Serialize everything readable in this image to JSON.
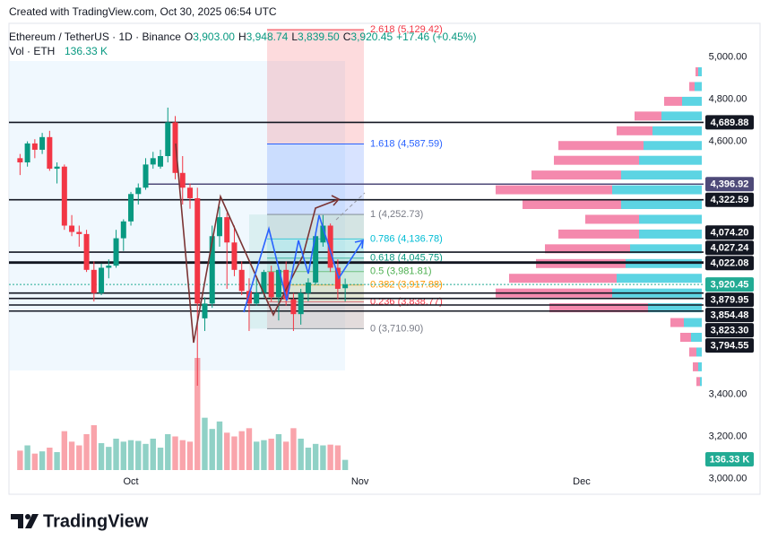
{
  "header": {
    "created": "Created with TradingView.com, Oct 30, 2025 06:54 UTC"
  },
  "chart_data": {
    "type": "candlestick",
    "symbol": "Ethereum / TetherUS · 1D · Binance",
    "ohlc_legend": [
      {
        "key": "O",
        "value": 3903.0,
        "label": "3,903.00"
      },
      {
        "key": "H",
        "value": 3948.74,
        "label": "3,948.74"
      },
      {
        "key": "L",
        "value": 3839.5,
        "label": "3,839.50"
      },
      {
        "key": "C",
        "value": 3920.45,
        "label": "3,920.45"
      }
    ],
    "change": {
      "value": 17.46,
      "percent": 0.45,
      "label": "+17.46 (+0.45%)"
    },
    "volume_title": "Vol · ETH",
    "volume_label": "136.33 K",
    "up_color": "#089981",
    "down_color": "#f23645",
    "ylim": [
      2925,
      5160
    ],
    "yticks": [
      {
        "value": 5000,
        "label": "5,000.00"
      },
      {
        "value": 4800,
        "label": "4,800.00"
      },
      {
        "value": 4600,
        "label": "4,600.00"
      },
      {
        "value": 3400,
        "label": "3,400.00"
      },
      {
        "value": 3200,
        "label": "3,200.00"
      },
      {
        "value": 3000,
        "label": "3,000.00"
      }
    ],
    "xlim": [
      -1.5,
      92.5
    ],
    "xticks": [
      {
        "value": 15,
        "label": "Oct"
      },
      {
        "value": 46,
        "label": "Nov"
      },
      {
        "value": 76,
        "label": "Dec"
      }
    ],
    "open": [
      4520,
      4500,
      4590,
      4560,
      4620,
      4470,
      4480,
      4200,
      4170,
      4160,
      3990,
      3880,
      4000,
      4010,
      4140,
      4220,
      4350,
      4380,
      4490,
      4480,
      4530,
      4690,
      4450,
      4380,
      4330,
      3760,
      3830,
      4150,
      4240,
      4120,
      3990,
      3890,
      3830,
      3880,
      3980,
      3860,
      3990,
      3850,
      3780,
      3880,
      3930,
      4120,
      4200,
      4000,
      3903.0
    ],
    "high": [
      4540,
      4600,
      4610,
      4640,
      4650,
      4500,
      4490,
      4250,
      4200,
      4180,
      4030,
      4020,
      4040,
      4180,
      4230,
      4360,
      4400,
      4520,
      4550,
      4560,
      4760,
      4720,
      4530,
      4400,
      4380,
      3860,
      4200,
      4290,
      4260,
      4200,
      4030,
      3950,
      3950,
      3990,
      4010,
      4000,
      4030,
      3880,
      3900,
      3950,
      4170,
      4250,
      4210,
      4040,
      3948.74
    ],
    "low": [
      4440,
      4480,
      4520,
      4540,
      4460,
      4400,
      4180,
      4150,
      4100,
      3980,
      3840,
      3870,
      3950,
      4000,
      4080,
      4200,
      4300,
      4370,
      4470,
      4470,
      4500,
      4420,
      4300,
      4280,
      3440,
      3700,
      3810,
      4100,
      3900,
      3960,
      3870,
      3700,
      3820,
      3860,
      3840,
      3750,
      3820,
      3700,
      3730,
      3840,
      3920,
      4100,
      3980,
      3850,
      3839.5
    ],
    "close": [
      4500,
      4590,
      4560,
      4620,
      4470,
      4480,
      4200,
      4170,
      4160,
      3990,
      3880,
      4000,
      4010,
      4140,
      4220,
      4350,
      4380,
      4490,
      4520,
      4530,
      4690,
      4450,
      4380,
      4330,
      3830,
      3830,
      4150,
      4240,
      4120,
      3990,
      3890,
      3830,
      3880,
      3980,
      3860,
      3990,
      3850,
      3780,
      3880,
      3930,
      4150,
      4200,
      4000,
      3900,
      3920.45
    ],
    "volume": [
      260,
      330,
      220,
      250,
      300,
      240,
      520,
      380,
      330,
      480,
      600,
      360,
      310,
      420,
      380,
      400,
      390,
      350,
      420,
      300,
      480,
      450,
      400,
      380,
      1500,
      700,
      550,
      650,
      500,
      450,
      520,
      560,
      380,
      400,
      420,
      480,
      380,
      560,
      420,
      300,
      350,
      330,
      340,
      330,
      136.33
    ],
    "price_lines": [
      {
        "value": 4689.88,
        "label": "4,689.88",
        "color": "#131722"
      },
      {
        "value": 4396.92,
        "label": "4,396.92",
        "color": "#4e4a78"
      },
      {
        "value": 4322.59,
        "label": "4,322.59",
        "color": "#131722"
      },
      {
        "value": 4074.2,
        "label": "4,074.20",
        "color": "#131722"
      },
      {
        "value": 4027.24,
        "label": "4,027.24",
        "color": "#131722"
      },
      {
        "value": 4022.08,
        "label": "4,022.08",
        "color": "#131722"
      },
      {
        "value": 3920.45,
        "label": "3,920.45",
        "color": "#22ab94",
        "current": true
      },
      {
        "value": 3879.95,
        "label": "3,879.95",
        "color": "#131722"
      },
      {
        "value": 3854.48,
        "label": "3,854.48",
        "color": "#131722"
      },
      {
        "value": 3823.3,
        "label": "3,823.30",
        "color": "#131722"
      },
      {
        "value": 3794.55,
        "label": "3,794.55",
        "color": "#131722"
      }
    ],
    "fib_levels": [
      {
        "value": 5129.42,
        "label": "2.618 (5,129.42)",
        "color": "#f23645"
      },
      {
        "value": 4587.59,
        "label": "1.618 (4,587.59)",
        "color": "#2962ff"
      },
      {
        "value": 4252.73,
        "label": "1 (4,252.73)",
        "color": "#787b86"
      },
      {
        "value": 4136.78,
        "label": "0.786 (4,136.78)",
        "color": "#00bcd4"
      },
      {
        "value": 4045.75,
        "label": "0.618 (4,045.75)",
        "color": "#089981"
      },
      {
        "value": 3981.81,
        "label": "0.5 (3,981.81)",
        "color": "#4caf50"
      },
      {
        "value": 3917.88,
        "label": "0.382 (3,917.88)",
        "color": "#ff9800"
      },
      {
        "value": 3838.77,
        "label": "0.236 (3,838.77)",
        "color": "#f23645"
      },
      {
        "value": 3710.9,
        "label": "0 (3,710.90)",
        "color": "#787b86"
      }
    ],
    "volume_profile": [
      {
        "price": 4930,
        "up": 4,
        "down": 3
      },
      {
        "price": 4860,
        "up": 8,
        "down": 6
      },
      {
        "price": 4790,
        "up": 22,
        "down": 20
      },
      {
        "price": 4720,
        "up": 45,
        "down": 30
      },
      {
        "price": 4650,
        "up": 55,
        "down": 40
      },
      {
        "price": 4580,
        "up": 65,
        "down": 95
      },
      {
        "price": 4510,
        "up": 70,
        "down": 95
      },
      {
        "price": 4440,
        "up": 90,
        "down": 100
      },
      {
        "price": 4370,
        "up": 100,
        "down": 130
      },
      {
        "price": 4300,
        "up": 90,
        "down": 110
      },
      {
        "price": 4230,
        "up": 70,
        "down": 60
      },
      {
        "price": 4160,
        "up": 70,
        "down": 90
      },
      {
        "price": 4090,
        "up": 80,
        "down": 95
      },
      {
        "price": 4020,
        "up": 85,
        "down": 100
      },
      {
        "price": 3950,
        "up": 95,
        "down": 120
      },
      {
        "price": 3880,
        "up": 100,
        "down": 130
      },
      {
        "price": 3810,
        "up": 60,
        "down": 110
      },
      {
        "price": 3740,
        "up": 20,
        "down": 15
      },
      {
        "price": 3670,
        "up": 12,
        "down": 12
      },
      {
        "price": 3600,
        "up": 6,
        "down": 8
      },
      {
        "price": 3530,
        "up": 4,
        "down": 6
      },
      {
        "price": 3460,
        "up": 2,
        "down": 4
      }
    ]
  },
  "footer": {
    "logo": "TradingView"
  }
}
